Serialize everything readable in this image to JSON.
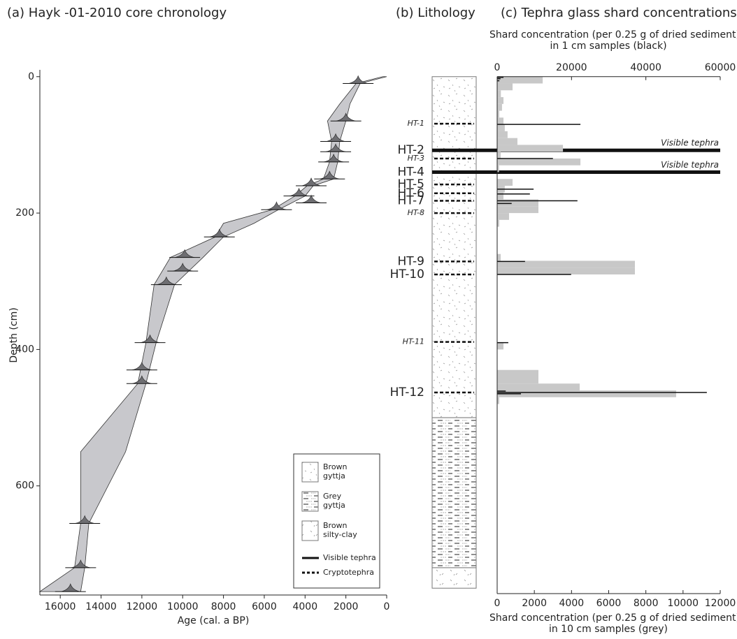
{
  "chart_data": [
    {
      "type": "age-depth",
      "title": "(a) Hayk -01-2010 core  chronology",
      "xlabel": "Age (cal. a BP)",
      "ylabel": "Depth (cm)",
      "xlim": [
        17000,
        0
      ],
      "xticks": [
        16000,
        14000,
        12000,
        10000,
        8000,
        6000,
        4000,
        2000,
        0
      ],
      "ylim": [
        -10,
        760
      ],
      "yticks": [
        0,
        200,
        400,
        600
      ],
      "envelope_color": "#c8c8cc",
      "depths": [
        0,
        10,
        40,
        65,
        95,
        125,
        150,
        160,
        175,
        195,
        215,
        235,
        265,
        305,
        390,
        450,
        550,
        655,
        720,
        755
      ],
      "envelope_young": [
        0,
        1300,
        1800,
        2000,
        2300,
        2400,
        2600,
        3600,
        4000,
        5300,
        6500,
        8000,
        9000,
        10400,
        11300,
        11800,
        12800,
        14600,
        14800,
        15000
      ],
      "envelope_old": [
        200,
        1500,
        2300,
        2900,
        2700,
        2800,
        3100,
        3900,
        4500,
        5600,
        8000,
        8400,
        10600,
        11400,
        11800,
        12200,
        15000,
        15000,
        15300,
        17000
      ],
      "points": {
        "color": "#6e6e72",
        "ages": [
          1400,
          2000,
          2500,
          2500,
          2600,
          2800,
          3700,
          4300,
          3700,
          5400,
          8200,
          9900,
          10000,
          10800,
          11600,
          12000,
          12000,
          14800,
          15000,
          15500
        ],
        "depths": [
          10,
          65,
          95,
          110,
          125,
          150,
          160,
          175,
          185,
          195,
          235,
          265,
          285,
          305,
          390,
          430,
          450,
          655,
          720,
          755
        ]
      }
    },
    {
      "type": "lithology",
      "title": "(b) Lithology",
      "ylim": [
        -10,
        760
      ],
      "units": [
        {
          "name": "Brown\ngyttja",
          "top": 0,
          "bottom": 500,
          "pattern": "brown"
        },
        {
          "name": "Grey\ngyttja",
          "top": 500,
          "bottom": 720,
          "pattern": "grey"
        },
        {
          "name": "Brown\nsilty-clay",
          "top": 720,
          "bottom": 750,
          "pattern": "clay"
        }
      ],
      "tephra_types": [
        {
          "name": "Visible tephra",
          "style": "solid"
        },
        {
          "name": "Cryptotephra",
          "style": "dashed"
        }
      ],
      "tephra": [
        {
          "label": "HT-1",
          "depth": 69,
          "style": "dashed",
          "italic": true
        },
        {
          "label": "HT-2",
          "depth": 108,
          "style": "solid",
          "italic": false,
          "note": "Visible tephra"
        },
        {
          "label": "HT-3",
          "depth": 120,
          "style": "dashed",
          "italic": true
        },
        {
          "label": "HT-4",
          "depth": 140,
          "style": "solid",
          "italic": false,
          "note": "Visible tephra"
        },
        {
          "label": "HT-5",
          "depth": 158,
          "style": "dashed",
          "italic": false
        },
        {
          "label": "HT-6",
          "depth": 171,
          "style": "dashed",
          "italic": false
        },
        {
          "label": "HT-7",
          "depth": 182,
          "style": "dashed",
          "italic": false
        },
        {
          "label": "HT-8",
          "depth": 200,
          "style": "dashed",
          "italic": true
        },
        {
          "label": "HT-9",
          "depth": 271,
          "style": "dashed",
          "italic": false
        },
        {
          "label": "HT-10",
          "depth": 290,
          "style": "dashed",
          "italic": false
        },
        {
          "label": "HT-11",
          "depth": 389,
          "style": "dashed",
          "italic": true
        },
        {
          "label": "HT-12",
          "depth": 463,
          "style": "dashed",
          "italic": false
        }
      ]
    },
    {
      "type": "shards",
      "title": "(c) Tephra glass shard concentrations",
      "ylim": [
        -10,
        760
      ],
      "xlabel": "Shard concentration (per 0.25 g of dried sediment)\nin 10 cm samples (grey)",
      "x2label": "Shard concentration (per 0.25 g of dried sediment)\nin 1 cm samples (black)",
      "xlim": [
        0,
        12000
      ],
      "xticks": [
        0,
        2000,
        4000,
        6000,
        8000,
        10000,
        12000
      ],
      "x2lim": [
        0,
        60000
      ],
      "x2ticks": [
        0,
        20000,
        40000,
        60000
      ],
      "grey": {
        "color": "#c8c8c8",
        "bins": [
          0,
          10,
          20,
          30,
          40,
          50,
          60,
          70,
          80,
          90,
          100,
          110,
          120,
          130,
          140,
          150,
          160,
          170,
          180,
          190,
          200,
          210,
          220,
          230,
          240,
          250,
          260,
          270,
          280,
          290,
          300,
          310,
          320,
          330,
          340,
          350,
          360,
          370,
          380,
          390,
          400,
          410,
          420,
          430,
          440,
          450,
          460,
          470,
          480
        ],
        "values": [
          2450,
          830,
          200,
          340,
          260,
          110,
          340,
          410,
          560,
          1090,
          3540,
          190,
          4480,
          100,
          0,
          830,
          410,
          340,
          2220,
          2220,
          640,
          110,
          0,
          0,
          0,
          0,
          190,
          7410,
          7410,
          0,
          0,
          0,
          0,
          0,
          0,
          0,
          0,
          0,
          0,
          340,
          0,
          0,
          0,
          2220,
          2220,
          4440,
          9630,
          110
        ]
      },
      "black": {
        "color": "#111111",
        "axis": "x2",
        "depths": [
          1,
          3,
          6,
          70,
          120,
          165,
          172,
          182,
          186,
          271,
          290,
          390,
          461,
          463,
          465
        ],
        "values": [
          1700,
          900,
          600,
          22400,
          15000,
          9800,
          8800,
          21600,
          3900,
          7500,
          19900,
          3000,
          2300,
          56400,
          6400
        ]
      }
    }
  ]
}
